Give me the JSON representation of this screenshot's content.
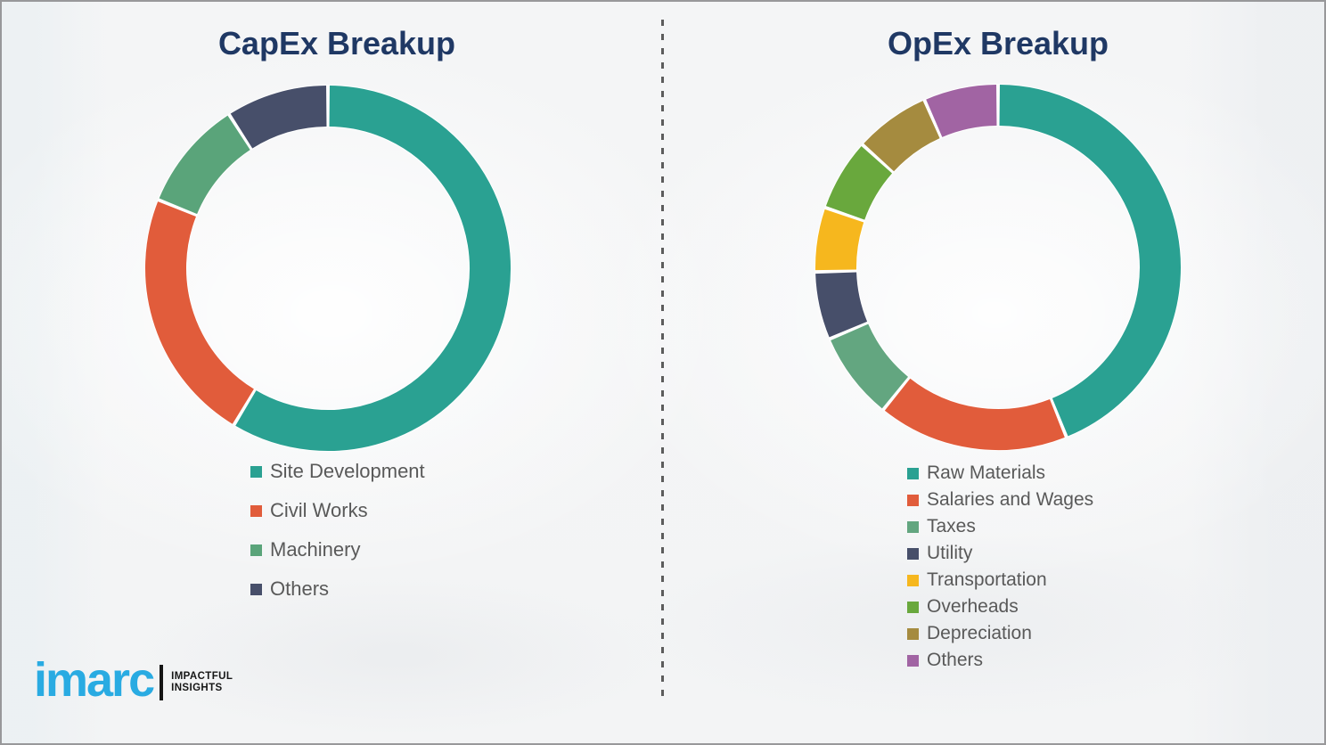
{
  "styles": {
    "background_color": "#f4f4f5",
    "border_color": "#98989a",
    "divider_color": "#5c5c5c",
    "title_color": "#1F3864",
    "legend_text_color": "#595959",
    "brand_color": "#29ABE2"
  },
  "chart_data": [
    {
      "type": "pie",
      "donut": true,
      "title": "CapEx Breakup",
      "categories": [
        "Site Development",
        "Civil Works",
        "Machinery",
        "Others"
      ],
      "values": [
        58.6,
        22.5,
        9.8,
        9.1
      ],
      "colors": [
        "#2AA192",
        "#E15C3B",
        "#5AA47A",
        "#474F6A"
      ],
      "units": "percent",
      "start_angle_deg": 0,
      "direction": "clockwise",
      "legend_position": "below-left"
    },
    {
      "type": "pie",
      "donut": true,
      "title": "OpEx Breakup",
      "categories": [
        "Raw Materials",
        "Salaries and Wages",
        "Taxes",
        "Utility",
        "Transportation",
        "Overheads",
        "Depreciation",
        "Others"
      ],
      "values": [
        43.9,
        16.9,
        7.8,
        6.0,
        5.7,
        6.4,
        6.7,
        6.6
      ],
      "colors": [
        "#2AA192",
        "#E15C3B",
        "#63A680",
        "#474F6A",
        "#F6B71E",
        "#69A83D",
        "#A58B3F",
        "#A164A3"
      ],
      "units": "percent",
      "start_angle_deg": 0,
      "direction": "clockwise",
      "legend_position": "below-left"
    }
  ],
  "logo": {
    "brand": "imarc",
    "tagline_line1": "IMPACTFUL",
    "tagline_line2": "INSIGHTS"
  }
}
